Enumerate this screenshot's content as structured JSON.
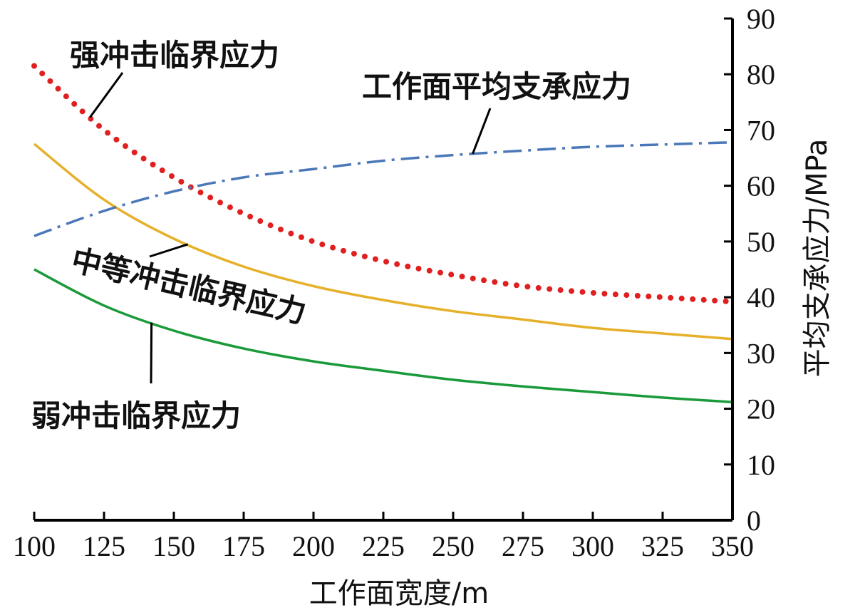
{
  "chart_data": {
    "type": "line",
    "xlabel": "工作面宽度/m",
    "ylabel": "平均支承应力/MPa",
    "xlim": [
      100,
      350
    ],
    "ylim": [
      0,
      90
    ],
    "x_ticks": [
      100,
      125,
      150,
      175,
      200,
      225,
      250,
      275,
      300,
      325,
      350
    ],
    "y_ticks": [
      0,
      10,
      20,
      30,
      40,
      50,
      60,
      70,
      80,
      90
    ],
    "x_tick_labels": [
      "100",
      "125",
      "150",
      "175",
      "200",
      "225",
      "250",
      "275",
      "300",
      "325",
      "350"
    ],
    "y_tick_labels": [
      "0",
      "10",
      "20",
      "30",
      "40",
      "50",
      "60",
      "70",
      "80",
      "90"
    ],
    "y_axis_side": "right",
    "grid": false,
    "legend": "none",
    "series": [
      {
        "name": "强冲击临界应力",
        "color": "#e02020",
        "style": "dotted",
        "x": [
          100,
          125,
          150,
          175,
          200,
          225,
          250,
          275,
          300,
          325,
          350
        ],
        "y": [
          81.5,
          70.0,
          61.5,
          55.0,
          50.0,
          46.5,
          44.0,
          42.0,
          40.8,
          40.0,
          39.2
        ]
      },
      {
        "name": "中等冲击临界应力",
        "color": "#e6b02a",
        "style": "solid",
        "x": [
          100,
          125,
          150,
          175,
          200,
          225,
          250,
          275,
          300,
          325,
          350
        ],
        "y": [
          67.5,
          57.5,
          50.5,
          45.5,
          42.0,
          39.5,
          37.5,
          36.0,
          34.5,
          33.5,
          32.5
        ]
      },
      {
        "name": "弱冲击临界应力",
        "color": "#1a9a3a",
        "style": "solid",
        "x": [
          100,
          125,
          150,
          175,
          200,
          225,
          250,
          275,
          300,
          325,
          350
        ],
        "y": [
          45.0,
          38.5,
          34.0,
          30.8,
          28.5,
          26.8,
          25.2,
          24.0,
          23.0,
          22.0,
          21.2
        ]
      },
      {
        "name": "工作面平均支承应力",
        "color": "#4a78b8",
        "style": "dashdot",
        "x": [
          100,
          125,
          150,
          175,
          200,
          225,
          250,
          275,
          300,
          325,
          350
        ],
        "y": [
          51.0,
          55.5,
          59.0,
          61.5,
          63.0,
          64.5,
          65.5,
          66.3,
          67.0,
          67.4,
          67.8
        ]
      }
    ],
    "annotations": [
      {
        "text": "强冲击临界应力",
        "series": 0
      },
      {
        "text": "工作面平均支承应力",
        "series": 3
      },
      {
        "text": "中等冲击临界应力",
        "series": 1
      },
      {
        "text": "弱冲击临界应力",
        "series": 2
      }
    ]
  }
}
